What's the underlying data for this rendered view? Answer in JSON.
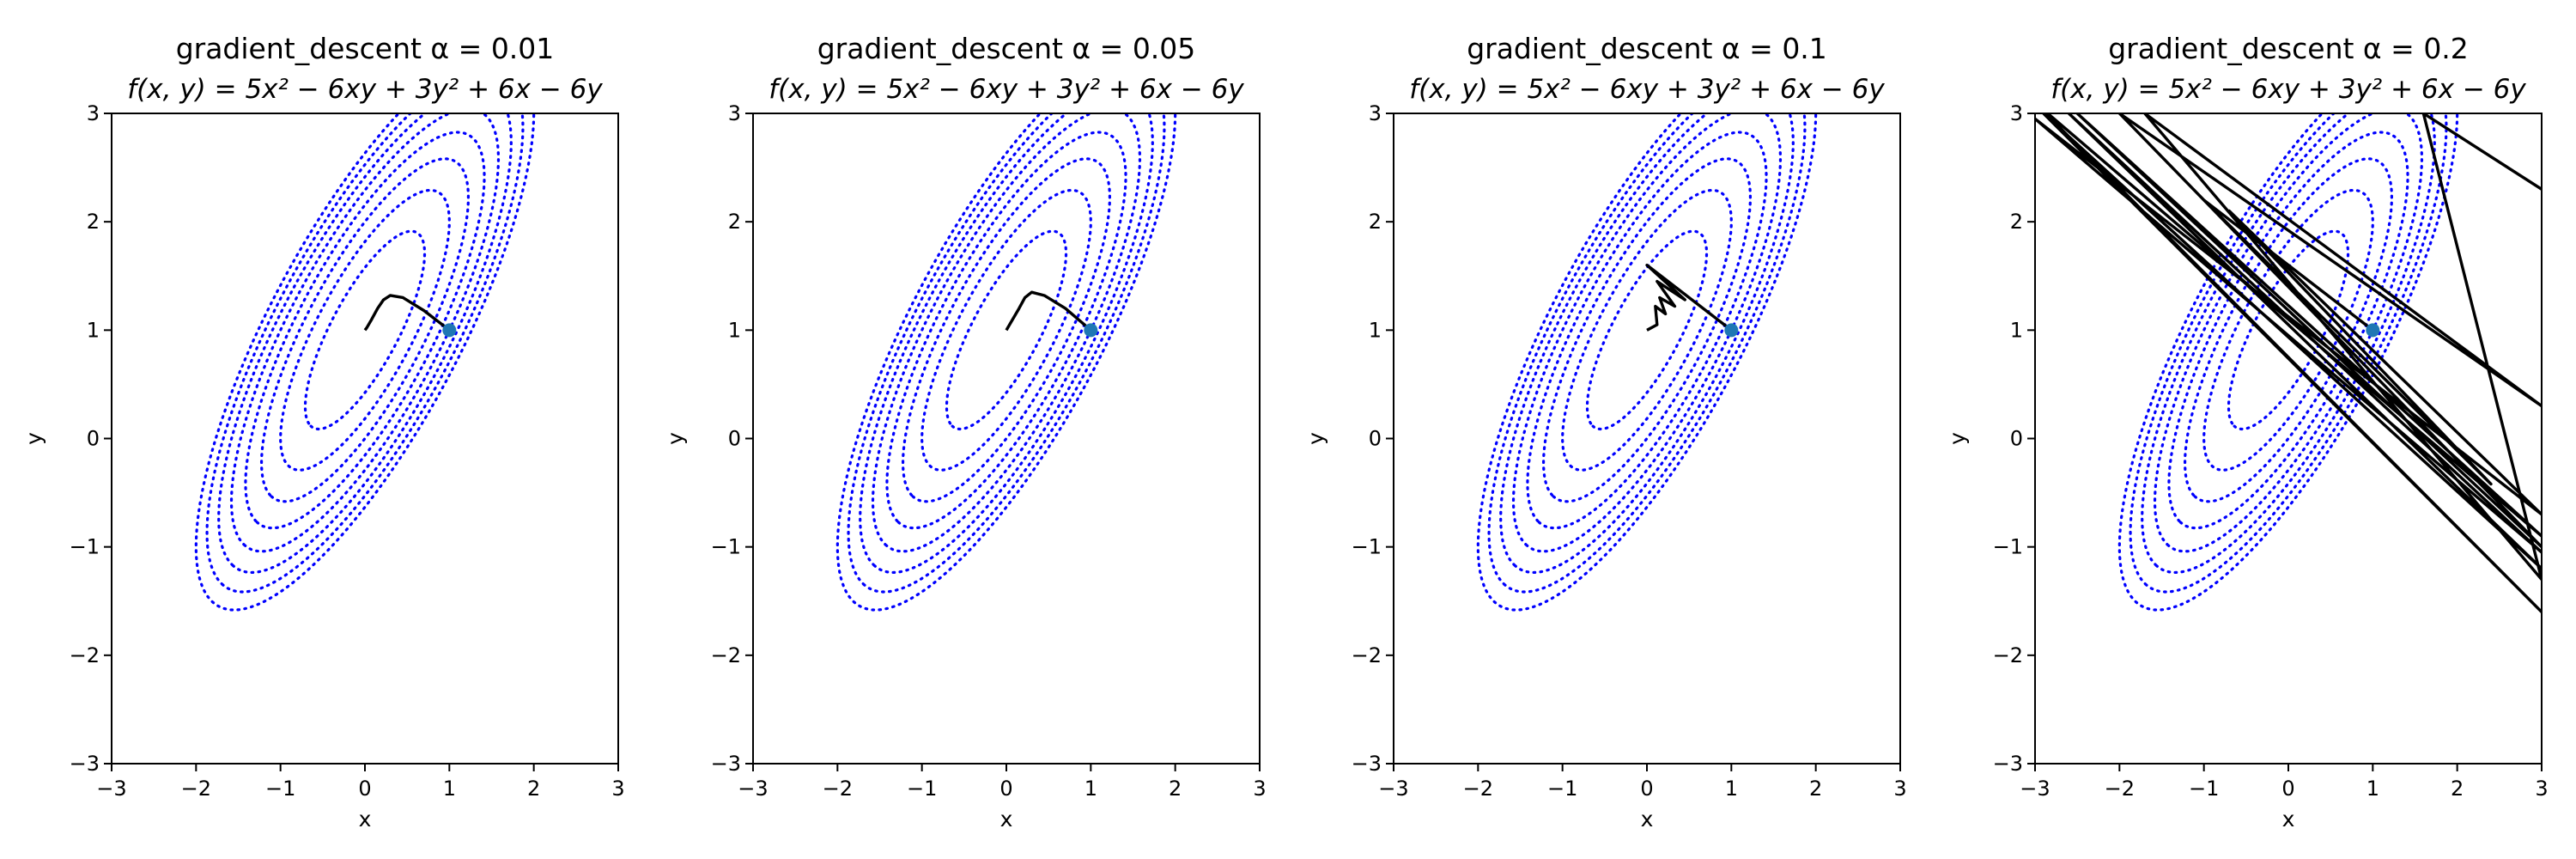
{
  "figure": {
    "background": "#ffffff",
    "contour_color": "#0000ff",
    "path_color": "#000000",
    "point_color": "#1f77b4"
  },
  "chart_data": [
    {
      "type": "line",
      "title": "gradient_descent α = 0.01",
      "subtitle": "f(x, y) = 5x² − 6xy + 3y² + 6x − 6y",
      "xlabel": "x",
      "ylabel": "y",
      "xlim": [
        -3,
        3
      ],
      "ylim": [
        -3,
        3
      ],
      "xticks": [
        -3,
        -2,
        -1,
        0,
        1,
        2,
        3
      ],
      "yticks": [
        -3,
        -2,
        -1,
        0,
        1,
        2,
        3
      ],
      "grid": false,
      "legend": "none",
      "contour_levels": [
        1,
        2,
        3,
        4,
        5,
        6,
        7,
        8
      ],
      "minimum": [
        0,
        1
      ],
      "start_point": [
        1,
        1
      ],
      "path": [
        [
          1,
          1
        ],
        [
          0.7,
          1.18
        ],
        [
          0.45,
          1.3
        ],
        [
          0.3,
          1.32
        ],
        [
          0.22,
          1.28
        ],
        [
          0.15,
          1.2
        ],
        [
          0.08,
          1.1
        ],
        [
          0.02,
          1.02
        ],
        [
          0,
          1
        ]
      ]
    },
    {
      "type": "line",
      "title": "gradient_descent α = 0.05",
      "subtitle": "f(x, y) = 5x² − 6xy + 3y² + 6x − 6y",
      "xlabel": "x",
      "ylabel": "y",
      "xlim": [
        -3,
        3
      ],
      "ylim": [
        -3,
        3
      ],
      "xticks": [
        -3,
        -2,
        -1,
        0,
        1,
        2,
        3
      ],
      "yticks": [
        -3,
        -2,
        -1,
        0,
        1,
        2,
        3
      ],
      "grid": false,
      "legend": "none",
      "contour_levels": [
        1,
        2,
        3,
        4,
        5,
        6,
        7,
        8
      ],
      "minimum": [
        0,
        1
      ],
      "start_point": [
        1,
        1
      ],
      "path": [
        [
          1,
          1
        ],
        [
          0.7,
          1.2
        ],
        [
          0.45,
          1.32
        ],
        [
          0.3,
          1.35
        ],
        [
          0.22,
          1.3
        ],
        [
          0.15,
          1.2
        ],
        [
          0.06,
          1.08
        ],
        [
          0,
          1
        ]
      ]
    },
    {
      "type": "line",
      "title": "gradient_descent α = 0.1",
      "subtitle": "f(x, y) = 5x² − 6xy + 3y² + 6x − 6y",
      "xlabel": "x",
      "ylabel": "y",
      "xlim": [
        -3,
        3
      ],
      "ylim": [
        -3,
        3
      ],
      "xticks": [
        -3,
        -2,
        -1,
        0,
        1,
        2,
        3
      ],
      "yticks": [
        -3,
        -2,
        -1,
        0,
        1,
        2,
        3
      ],
      "grid": false,
      "legend": "none",
      "contour_levels": [
        1,
        2,
        3,
        4,
        5,
        6,
        7,
        8
      ],
      "minimum": [
        0,
        1
      ],
      "start_point": [
        1,
        1
      ],
      "path": [
        [
          1,
          1
        ],
        [
          0,
          1.6
        ],
        [
          0.45,
          1.28
        ],
        [
          0.12,
          1.45
        ],
        [
          0.33,
          1.22
        ],
        [
          0.15,
          1.3
        ],
        [
          0.22,
          1.15
        ],
        [
          0.1,
          1.22
        ],
        [
          0.12,
          1.05
        ],
        [
          0,
          1
        ]
      ]
    },
    {
      "type": "line",
      "title": "gradient_descent α = 0.2",
      "subtitle": "f(x, y) = 5x² − 6xy + 3y² + 6x − 6y",
      "xlabel": "x",
      "ylabel": "y",
      "xlim": [
        -3,
        3
      ],
      "ylim": [
        -3,
        3
      ],
      "xticks": [
        -3,
        -2,
        -1,
        0,
        1,
        2,
        3
      ],
      "yticks": [
        -3,
        -2,
        -1,
        0,
        1,
        2,
        3
      ],
      "grid": false,
      "legend": "none",
      "contour_levels": [
        1,
        2,
        3,
        4,
        5,
        6,
        7,
        8
      ],
      "minimum": [
        0,
        1
      ],
      "start_point": [
        1,
        1
      ],
      "path": [
        [
          1,
          1
        ],
        [
          -1,
          2.2
        ],
        [
          2.4,
          -0.42
        ],
        [
          -0.7,
          2.1
        ],
        [
          3.0,
          -0.7
        ],
        [
          -3.0,
          2.95
        ],
        [
          3.0,
          -1.05
        ],
        [
          -2.6,
          3.0
        ],
        [
          3.0,
          -1.2
        ],
        [
          -2.9,
          3.0
        ],
        [
          3.0,
          -1.6
        ],
        [
          -3.0,
          3.1
        ],
        [
          3.0,
          -0.9
        ],
        [
          -2.5,
          3.0
        ],
        [
          3.0,
          -1.0
        ],
        [
          -2.0,
          3.0
        ],
        [
          3.0,
          0.3
        ],
        [
          -1.7,
          3.0
        ],
        [
          3.0,
          -1.3
        ],
        [
          1.6,
          3.0
        ],
        [
          3.0,
          2.3
        ]
      ]
    }
  ]
}
